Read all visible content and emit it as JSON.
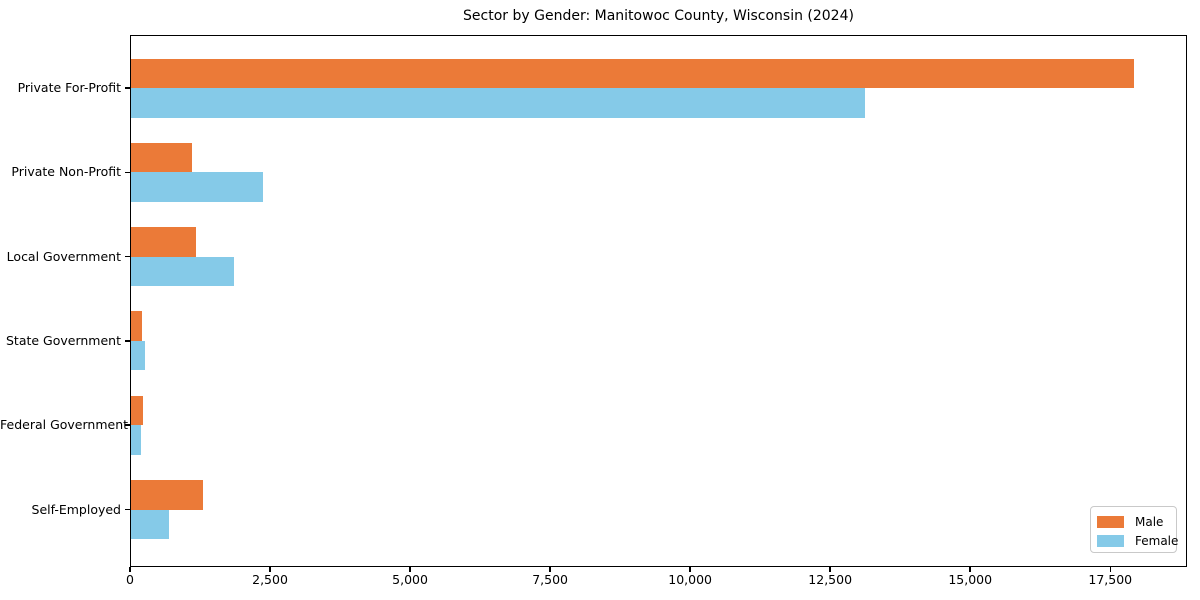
{
  "page": {
    "background": "#ffffff"
  },
  "chart_data": {
    "type": "bar",
    "orientation": "horizontal",
    "title": "Sector by Gender: Manitowoc County, Wisconsin (2024)",
    "categories": [
      "Private For-Profit",
      "Private Non-Profit",
      "Local Government",
      "State Government",
      "Federal Government",
      "Self-Employed"
    ],
    "series": [
      {
        "name": "Male",
        "color": "#eb7a38",
        "values": [
          17920,
          1100,
          1180,
          215,
          230,
          1300
        ]
      },
      {
        "name": "Female",
        "color": "#85cae8",
        "values": [
          13120,
          2370,
          1865,
          260,
          205,
          690
        ]
      }
    ],
    "xlim": [
      0,
      18870
    ],
    "xticks": [
      0,
      2500,
      5000,
      7500,
      10000,
      12500,
      15000,
      17500
    ],
    "xtick_labels": [
      "0",
      "2,500",
      "5,000",
      "7,500",
      "10,000",
      "12,500",
      "15,000",
      "17,500"
    ],
    "xlabel": "",
    "ylabel": "",
    "grid": false,
    "legend": {
      "position": "lower right",
      "entries": [
        "Male",
        "Female"
      ]
    },
    "axis_color": "#000000"
  }
}
